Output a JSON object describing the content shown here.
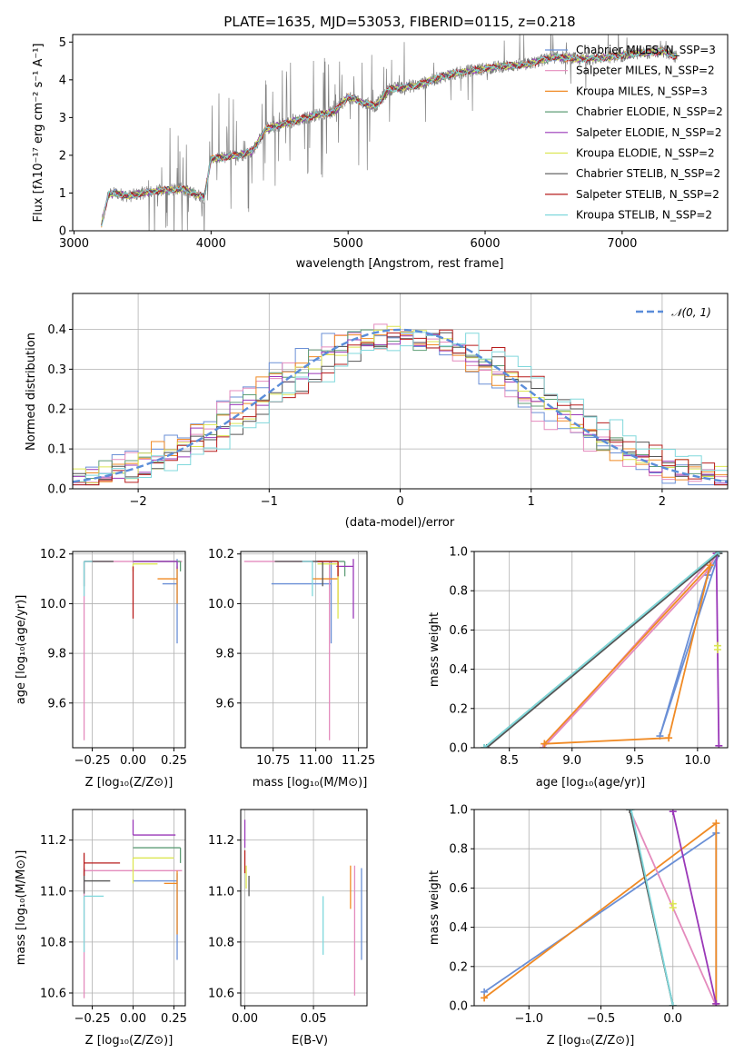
{
  "chart_data": [
    {
      "id": "spectrum",
      "type": "line",
      "title": "PLATE=1635, MJD=53053, FIBERID=0115, z=0.218",
      "xlabel": "wavelength [Angstrom, rest frame]",
      "ylabel": "Flux [fλ10⁻¹⁷ erg cm⁻² s⁻¹ A⁻¹]",
      "xlim": [
        2990,
        7770
      ],
      "ylim": [
        0,
        5.2
      ],
      "xticks": [
        3000,
        4000,
        5000,
        6000,
        7000
      ],
      "yticks": [
        0,
        1,
        2,
        3,
        4,
        5
      ],
      "data_color": "#808080",
      "anchors": [
        [
          3200,
          0.15
        ],
        [
          3250,
          0.95
        ],
        [
          3300,
          1.0
        ],
        [
          3400,
          0.92
        ],
        [
          3500,
          1.0
        ],
        [
          3600,
          1.05
        ],
        [
          3700,
          1.08
        ],
        [
          3800,
          1.1
        ],
        [
          3900,
          0.95
        ],
        [
          3950,
          0.9
        ],
        [
          4000,
          1.9
        ],
        [
          4100,
          1.95
        ],
        [
          4200,
          2.0
        ],
        [
          4300,
          2.1
        ],
        [
          4400,
          2.7
        ],
        [
          4500,
          2.8
        ],
        [
          4700,
          3.0
        ],
        [
          4800,
          3.1
        ],
        [
          4900,
          3.15
        ],
        [
          5000,
          3.55
        ],
        [
          5100,
          3.4
        ],
        [
          5200,
          3.3
        ],
        [
          5300,
          3.75
        ],
        [
          5500,
          3.85
        ],
        [
          5700,
          4.1
        ],
        [
          5900,
          4.25
        ],
        [
          6100,
          4.35
        ],
        [
          6300,
          4.4
        ],
        [
          6500,
          4.6
        ],
        [
          6700,
          4.55
        ],
        [
          6900,
          4.6
        ],
        [
          7100,
          4.7
        ],
        [
          7300,
          4.75
        ],
        [
          7400,
          4.6
        ]
      ],
      "legend": [
        {
          "name": "Chabrier MILES, N_SSP=3",
          "color": "#6a8fd6"
        },
        {
          "name": "Salpeter MILES, N_SSP=2",
          "color": "#e48bbd"
        },
        {
          "name": "Kroupa MILES, N_SSP=3",
          "color": "#f08a24"
        },
        {
          "name": "Chabrier ELODIE, N_SSP=2",
          "color": "#5f9e77"
        },
        {
          "name": "Salpeter ELODIE, N_SSP=2",
          "color": "#9a38b8"
        },
        {
          "name": "Kroupa ELODIE, N_SSP=2",
          "color": "#dce653"
        },
        {
          "name": "Chabrier STELIB, N_SSP=2",
          "color": "#555555"
        },
        {
          "name": "Salpeter STELIB, N_SSP=2",
          "color": "#b71c1c"
        },
        {
          "name": "Kroupa STELIB, N_SSP=2",
          "color": "#80d8dc"
        }
      ]
    },
    {
      "id": "residuals",
      "type": "line",
      "xlabel": "(data-model)/error",
      "ylabel": "Normed distribution",
      "xlim": [
        -2.5,
        2.5
      ],
      "ylim": [
        0,
        0.49
      ],
      "xticks": [
        -2,
        -1,
        0,
        1,
        2
      ],
      "yticks": [
        0.0,
        0.1,
        0.2,
        0.3,
        0.4
      ],
      "legend": [
        {
          "name": "𝒩(0, 1)",
          "color": "#5b8dd9"
        }
      ],
      "grid": true
    },
    {
      "id": "age_vs_Z",
      "type": "scatter",
      "xlabel": "Z [log₁₀(Z/Z⊙)]",
      "ylabel": "age  [log₁₀(age/yr)]",
      "xlim": [
        -0.37,
        0.32
      ],
      "ylim": [
        9.42,
        10.21
      ],
      "xticks": [
        -0.25,
        0.0,
        0.25
      ],
      "yticks": [
        9.6,
        9.8,
        10.0,
        10.2
      ],
      "points": [
        {
          "x": 0.27,
          "y": 10.08,
          "xerr": [
            0.09,
            0
          ],
          "yerr": [
            0.24,
            0.1
          ],
          "color": "#6a8fd6"
        },
        {
          "x": -0.3,
          "y": 10.17,
          "xerr": [
            0,
            0.6
          ],
          "yerr": [
            0.72,
            0
          ],
          "color": "#e48bbd"
        },
        {
          "x": 0.27,
          "y": 10.1,
          "xerr": [
            0.12,
            0
          ],
          "yerr": [
            0.1,
            0.05
          ],
          "color": "#f08a24"
        },
        {
          "x": 0.29,
          "y": 10.17,
          "xerr": [
            0.29,
            0
          ],
          "yerr": [
            0.04,
            0
          ],
          "color": "#5f9e77"
        },
        {
          "x": 0.27,
          "y": 10.17,
          "xerr": [
            0.27,
            0
          ],
          "yerr": [
            0.03,
            0
          ],
          "color": "#9a38b8"
        },
        {
          "x": 0.0,
          "y": 10.16,
          "xerr": [
            0,
            0.15
          ],
          "yerr": [
            0.03,
            0
          ],
          "color": "#dce653"
        },
        {
          "x": -0.3,
          "y": 10.17,
          "xerr": [
            0,
            0.18
          ],
          "yerr": [
            0.1,
            0
          ],
          "color": "#555555"
        },
        {
          "x": 0.0,
          "y": 10.15,
          "xerr": [
            0,
            0.0
          ],
          "yerr": [
            0.21,
            0
          ],
          "color": "#b71c1c"
        },
        {
          "x": -0.3,
          "y": 10.17,
          "xerr": [
            0,
            0.05
          ],
          "yerr": [
            0.14,
            0
          ],
          "color": "#80d8dc"
        }
      ],
      "grid": true
    },
    {
      "id": "age_vs_mass",
      "type": "scatter",
      "xlabel": "mass [log₁₀(M/M⊙)]",
      "ylabel": "",
      "xlim": [
        10.56,
        11.3
      ],
      "ylim": [
        9.42,
        10.21
      ],
      "xticks": [
        10.75,
        11.0,
        11.25
      ],
      "yticks": [
        9.6,
        9.8,
        10.0,
        10.2
      ],
      "points": [
        {
          "x": 11.09,
          "y": 10.08,
          "xerr": [
            0.35,
            0
          ],
          "yerr": [
            0.24,
            0.09
          ],
          "color": "#6a8fd6"
        },
        {
          "x": 11.08,
          "y": 10.17,
          "xerr": [
            0.5,
            0
          ],
          "yerr": [
            0.72,
            0
          ],
          "color": "#e48bbd"
        },
        {
          "x": 11.13,
          "y": 10.1,
          "xerr": [
            0.15,
            0
          ],
          "yerr": [
            0.1,
            0.07
          ],
          "color": "#f08a24"
        },
        {
          "x": 11.17,
          "y": 10.17,
          "xerr": [
            0.17,
            0
          ],
          "yerr": [
            0.06,
            0
          ],
          "color": "#5f9e77"
        },
        {
          "x": 11.22,
          "y": 10.15,
          "xerr": [
            0.1,
            0
          ],
          "yerr": [
            0.21,
            0.03
          ],
          "color": "#9a38b8"
        },
        {
          "x": 11.13,
          "y": 10.16,
          "xerr": [
            0.12,
            0
          ],
          "yerr": [
            0.22,
            0
          ],
          "color": "#dce653"
        },
        {
          "x": 11.04,
          "y": 10.17,
          "xerr": [
            0.28,
            0
          ],
          "yerr": [
            0.1,
            0
          ],
          "color": "#555555"
        },
        {
          "x": 11.13,
          "y": 10.17,
          "xerr": [
            0.12,
            0
          ],
          "yerr": [
            0.06,
            0
          ],
          "color": "#b71c1c"
        },
        {
          "x": 10.98,
          "y": 10.17,
          "xerr": [
            0.06,
            0
          ],
          "yerr": [
            0.14,
            0
          ],
          "color": "#80d8dc"
        }
      ],
      "grid": true
    },
    {
      "id": "weight_vs_age",
      "type": "line",
      "xlabel": "age  [log₁₀(age/yr)]",
      "ylabel": "mass weight",
      "xlim": [
        8.22,
        10.24
      ],
      "ylim": [
        0,
        1
      ],
      "xticks": [
        8.5,
        9.0,
        9.5,
        10.0
      ],
      "yticks": [
        0.0,
        0.2,
        0.4,
        0.6,
        0.8,
        1.0
      ],
      "series": [
        {
          "color": "#6a8fd6",
          "points": [
            [
              10.08,
              0.88
            ],
            [
              9.7,
              0.06
            ],
            [
              10.17,
              0.99
            ],
            [
              10.08,
              0.88
            ]
          ]
        },
        {
          "color": "#e48bbd",
          "points": [
            [
              8.77,
              0.0
            ],
            [
              10.08,
              0.9
            ],
            [
              10.15,
              0.99
            ],
            [
              8.77,
              0.0
            ]
          ]
        },
        {
          "color": "#f08a24",
          "points": [
            [
              8.78,
              0.02
            ],
            [
              9.77,
              0.05
            ],
            [
              10.1,
              0.93
            ],
            [
              8.78,
              0.02
            ]
          ]
        },
        {
          "color": "#9a38b8",
          "points": [
            [
              10.15,
              0.99
            ],
            [
              10.17,
              0.01
            ]
          ]
        },
        {
          "color": "#dce653",
          "points": [
            [
              10.16,
              0.5
            ],
            [
              10.16,
              0.52
            ]
          ]
        },
        {
          "color": "#5f9e77",
          "points": [
            [
              8.3,
              0.0
            ],
            [
              10.17,
              1.0
            ]
          ]
        },
        {
          "color": "#555555",
          "points": [
            [
              8.32,
              0.0
            ],
            [
              10.17,
              0.99
            ]
          ]
        },
        {
          "color": "#80d8dc",
          "points": [
            [
              8.3,
              0.0
            ],
            [
              10.17,
              1.0
            ]
          ]
        }
      ],
      "grid": true
    },
    {
      "id": "mass_vs_Z",
      "type": "scatter",
      "xlabel": "Z [log₁₀(Z/Z⊙)]",
      "ylabel": "mass [log₁₀(M/M⊙)]",
      "xlim": [
        -0.37,
        0.32
      ],
      "ylim": [
        10.55,
        11.32
      ],
      "xticks": [
        -0.25,
        0.0,
        0.25
      ],
      "yticks": [
        10.6,
        10.8,
        11.0,
        11.2
      ],
      "points": [
        {
          "x": 0.27,
          "y": 11.04,
          "xerr": [
            0.27,
            0
          ],
          "yerr": [
            0.31,
            0.03
          ],
          "color": "#6a8fd6"
        },
        {
          "x": -0.3,
          "y": 11.08,
          "xerr": [
            0,
            0.6
          ],
          "yerr": [
            0.5,
            0
          ],
          "color": "#e48bbd"
        },
        {
          "x": 0.27,
          "y": 11.03,
          "xerr": [
            0.08,
            0
          ],
          "yerr": [
            0.2,
            0.05
          ],
          "color": "#f08a24"
        },
        {
          "x": 0.29,
          "y": 11.17,
          "xerr": [
            0.29,
            0
          ],
          "yerr": [
            0.06,
            0
          ],
          "color": "#5f9e77"
        },
        {
          "x": 0.0,
          "y": 11.22,
          "xerr": [
            0,
            0.26
          ],
          "yerr": [
            0.0,
            0.06
          ],
          "color": "#9a38b8"
        },
        {
          "x": 0.0,
          "y": 11.13,
          "xerr": [
            0,
            0.25
          ],
          "yerr": [
            0.1,
            0
          ],
          "color": "#dce653"
        },
        {
          "x": -0.3,
          "y": 11.04,
          "xerr": [
            0,
            0.16
          ],
          "yerr": [
            0.05,
            0.05
          ],
          "color": "#555555"
        },
        {
          "x": -0.3,
          "y": 11.11,
          "xerr": [
            0,
            0.22
          ],
          "yerr": [
            0.05,
            0.04
          ],
          "color": "#b71c1c"
        },
        {
          "x": -0.3,
          "y": 10.98,
          "xerr": [
            0,
            0.12
          ],
          "yerr": [
            0.22,
            0
          ],
          "color": "#80d8dc"
        }
      ],
      "grid": true
    },
    {
      "id": "mass_vs_ebv",
      "type": "scatter",
      "xlabel": "E(B-V)",
      "ylabel": "",
      "xlim": [
        -0.003,
        0.089
      ],
      "ylim": [
        10.55,
        11.32
      ],
      "xticks": [
        0.0,
        0.05
      ],
      "yticks": [
        10.6,
        10.8,
        11.0,
        11.2
      ],
      "points": [
        {
          "x": 0.085,
          "y": 10.9,
          "yerr": [
            0.17,
            0.19
          ],
          "color": "#6a8fd6"
        },
        {
          "x": 0.08,
          "y": 10.86,
          "yerr": [
            0.27,
            0.24
          ],
          "color": "#e48bbd"
        },
        {
          "x": 0.077,
          "y": 11.0,
          "yerr": [
            0.07,
            0.1
          ],
          "color": "#f08a24"
        },
        {
          "x": 0.057,
          "y": 10.88,
          "yerr": [
            0.13,
            0.1
          ],
          "color": "#80d8dc"
        },
        {
          "x": 0.0,
          "y": 11.22,
          "yerr": [
            0.05,
            0.06
          ],
          "color": "#9a38b8"
        },
        {
          "x": 0.0,
          "y": 11.12,
          "yerr": [
            0.05,
            0.04
          ],
          "color": "#b71c1c"
        },
        {
          "x": 0.001,
          "y": 11.06,
          "yerr": [
            0.05,
            0.04
          ],
          "color": "#dce653"
        },
        {
          "x": 0.003,
          "y": 11.03,
          "yerr": [
            0.05,
            0.03
          ],
          "color": "#555555"
        }
      ],
      "grid": true
    },
    {
      "id": "weight_vs_Z",
      "type": "line",
      "xlabel": "Z [log₁₀(Z/Z⊙)]",
      "ylabel": "mass weight",
      "xlim": [
        -1.38,
        0.38
      ],
      "ylim": [
        0,
        1
      ],
      "xticks": [
        -1.0,
        -0.5,
        0.0
      ],
      "yticks": [
        0.0,
        0.2,
        0.4,
        0.6,
        0.8,
        1.0
      ],
      "series": [
        {
          "color": "#6a8fd6",
          "points": [
            [
              -1.31,
              0.07
            ],
            [
              0.3,
              0.88
            ],
            [
              0.3,
              0.01
            ]
          ]
        },
        {
          "color": "#f08a24",
          "points": [
            [
              -1.31,
              0.04
            ],
            [
              0.3,
              0.93
            ],
            [
              0.3,
              0.01
            ]
          ]
        },
        {
          "color": "#e48bbd",
          "points": [
            [
              -0.3,
              1.0
            ],
            [
              0.3,
              0.0
            ]
          ]
        },
        {
          "color": "#9a38b8",
          "points": [
            [
              0.0,
              0.99
            ],
            [
              0.3,
              0.01
            ]
          ]
        },
        {
          "color": "#dce653",
          "points": [
            [
              0.0,
              0.5
            ],
            [
              0.0,
              0.52
            ]
          ]
        },
        {
          "color": "#5f9e77",
          "points": [
            [
              -0.3,
              1.0
            ],
            [
              0.0,
              0.0
            ]
          ]
        },
        {
          "color": "#555555",
          "points": [
            [
              -0.3,
              1.0
            ],
            [
              0.0,
              0.0
            ]
          ]
        },
        {
          "color": "#80d8dc",
          "points": [
            [
              -0.29,
              1.0
            ],
            [
              0.0,
              0.0
            ]
          ]
        }
      ],
      "grid": true
    }
  ]
}
